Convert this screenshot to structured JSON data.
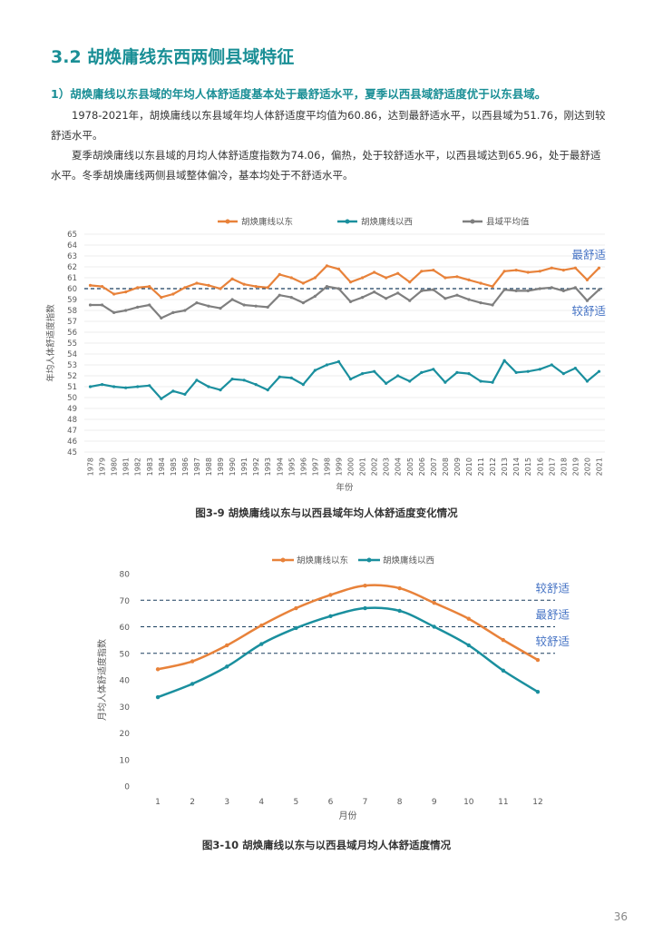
{
  "section_title": "3.2 胡焕庸线东西两侧县域特征",
  "subtitle": "1）胡焕庸线以东县域的年均人体舒适度基本处于最舒适水平，夏季以西县域舒适度优于以东县域。",
  "paragraphs": [
    "1978-2021年，胡焕庸线以东县域年均人体舒适度平均值为60.86，达到最舒适水平，以西县域为51.76，刚达到较舒适水平。",
    "夏季胡焕庸线以东县域的月均人体舒适度指数为74.06，偏热，处于较舒适水平，以西县域达到65.96，处于最舒适水平。冬季胡焕庸线两侧县域整体偏冷，基本均处于不舒适水平。"
  ],
  "figure1_caption": "图3-9 胡焕庸线以东与以西县域年均人体舒适度变化情况",
  "figure2_caption": "图3-10 胡焕庸线以东与以西县域月均人体舒适度情况",
  "page_number": "36",
  "colors": {
    "east": "#e8823a",
    "west": "#1a8f9e",
    "avg": "#7f7f7f",
    "title": "#1a8f96",
    "annot": "#4472c4"
  },
  "chart_data": [
    {
      "type": "line",
      "xlabel": "年份",
      "ylabel": "年均人体舒适度指数",
      "ylim": [
        45,
        65
      ],
      "yticks": [
        45,
        46,
        47,
        48,
        49,
        50,
        51,
        52,
        53,
        54,
        55,
        56,
        57,
        58,
        59,
        60,
        61,
        62,
        63,
        64,
        65
      ],
      "x": [
        "1978",
        "1979",
        "1980",
        "1981",
        "1982",
        "1983",
        "1984",
        "1985",
        "1986",
        "1987",
        "1988",
        "1989",
        "1990",
        "1991",
        "1992",
        "1993",
        "1994",
        "1995",
        "1996",
        "1997",
        "1998",
        "1999",
        "2000",
        "2001",
        "2002",
        "2003",
        "2004",
        "2005",
        "2006",
        "2007",
        "2008",
        "2009",
        "2010",
        "2011",
        "2012",
        "2013",
        "2014",
        "2015",
        "2016",
        "2017",
        "2018",
        "2019",
        "2020",
        "2021"
      ],
      "series": [
        {
          "name": "胡焕庸线以东",
          "values": [
            60.3,
            60.2,
            59.5,
            59.7,
            60.1,
            60.2,
            59.2,
            59.5,
            60.1,
            60.5,
            60.3,
            60.0,
            60.9,
            60.4,
            60.2,
            60.1,
            61.3,
            61.0,
            60.5,
            61.0,
            62.1,
            61.8,
            60.6,
            61.0,
            61.5,
            61.0,
            61.4,
            60.6,
            61.6,
            61.7,
            61.0,
            61.1,
            60.8,
            60.5,
            60.2,
            61.6,
            61.7,
            61.5,
            61.6,
            61.9,
            61.7,
            61.9,
            60.8,
            61.9
          ]
        },
        {
          "name": "胡焕庸线以西",
          "values": [
            51.0,
            51.2,
            51.0,
            50.9,
            51.0,
            51.1,
            49.9,
            50.6,
            50.3,
            51.6,
            51.0,
            50.7,
            51.7,
            51.6,
            51.2,
            50.7,
            51.9,
            51.8,
            51.2,
            52.5,
            53.0,
            53.3,
            51.7,
            52.2,
            52.4,
            51.3,
            52.0,
            51.5,
            52.3,
            52.6,
            51.4,
            52.3,
            52.2,
            51.5,
            51.4,
            53.4,
            52.3,
            52.4,
            52.6,
            53.0,
            52.2,
            52.7,
            51.5,
            52.4
          ]
        },
        {
          "name": "县域平均值",
          "values": [
            58.5,
            58.5,
            57.8,
            58.0,
            58.3,
            58.5,
            57.3,
            57.8,
            58.0,
            58.7,
            58.4,
            58.2,
            59.0,
            58.5,
            58.4,
            58.3,
            59.4,
            59.2,
            58.7,
            59.3,
            60.2,
            60.0,
            58.8,
            59.2,
            59.7,
            59.1,
            59.6,
            58.9,
            59.8,
            59.9,
            59.1,
            59.4,
            59.0,
            58.7,
            58.5,
            59.9,
            59.8,
            59.8,
            60.0,
            60.1,
            59.8,
            60.1,
            58.9,
            59.9
          ]
        }
      ],
      "reference_lines": [
        {
          "value": 60,
          "label_above": "最舒适",
          "label_below": "较舒适"
        }
      ]
    },
    {
      "type": "line",
      "xlabel": "月份",
      "ylabel": "月均人体舒适度指数",
      "ylim": [
        0,
        80
      ],
      "yticks": [
        0,
        10,
        20,
        30,
        40,
        50,
        60,
        70,
        80
      ],
      "x": [
        "1",
        "2",
        "3",
        "4",
        "5",
        "6",
        "7",
        "8",
        "9",
        "10",
        "11",
        "12"
      ],
      "series": [
        {
          "name": "胡焕庸线以东",
          "values": [
            44,
            47,
            53,
            60.5,
            67,
            72,
            75.5,
            74.5,
            69,
            63,
            55,
            47.5
          ]
        },
        {
          "name": "胡焕庸线以西",
          "values": [
            33.5,
            38.5,
            45,
            53.5,
            59.5,
            64,
            67,
            66,
            60,
            53,
            43.5,
            35.5
          ]
        }
      ],
      "reference_lines": [
        {
          "value": 70,
          "label": "较舒适"
        },
        {
          "value": 60,
          "label": "最舒适"
        },
        {
          "value": 50,
          "label": "较舒适"
        }
      ]
    }
  ]
}
